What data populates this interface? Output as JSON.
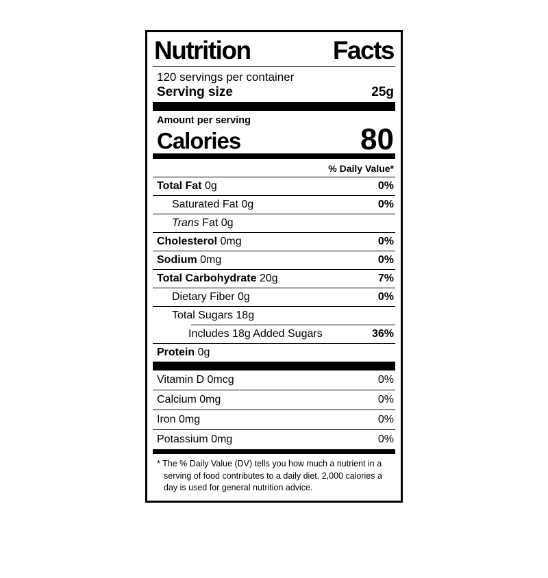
{
  "label": {
    "colors": {
      "foreground": "#000000",
      "background": "#ffffff"
    },
    "title_word1": "Nutrition",
    "title_word2": "Facts",
    "servings_per_container": "120 servings per container",
    "serving_size": {
      "label": "Serving size",
      "value": "25g"
    },
    "amount_per_serving": "Amount per serving",
    "calories": {
      "label": "Calories",
      "value": "80"
    },
    "daily_value_header": "% Daily Value*",
    "nutrients": [
      {
        "name": "Total Fat",
        "amount": "0g",
        "dv": "0%"
      },
      {
        "name": "Saturated Fat",
        "amount": "0g",
        "dv": "0%"
      },
      {
        "name_italic": "Trans",
        "name": "Fat",
        "amount": "0g",
        "dv": ""
      },
      {
        "name": "Cholesterol",
        "amount": "0mg",
        "dv": "0%"
      },
      {
        "name": "Sodium",
        "amount": "0mg",
        "dv": "0%"
      },
      {
        "name": "Total Carbohydrate",
        "amount": "20g",
        "dv": "7%"
      },
      {
        "name": "Dietary Fiber",
        "amount": "0g",
        "dv": "0%"
      },
      {
        "name": "Total Sugars",
        "amount": "18g",
        "dv": ""
      },
      {
        "name": "Includes 18g Added Sugars",
        "amount": "",
        "dv": "36%"
      },
      {
        "name": "Protein",
        "amount": "0g",
        "dv": ""
      }
    ],
    "vitamins": [
      {
        "name": "Vitamin D",
        "amount": "0mcg",
        "dv": "0%"
      },
      {
        "name": "Calcium",
        "amount": "0mg",
        "dv": "0%"
      },
      {
        "name": "Iron",
        "amount": "0mg",
        "dv": "0%"
      },
      {
        "name": "Potassium",
        "amount": "0mg",
        "dv": "0%"
      }
    ],
    "footnote_marker": "*",
    "footnote": "The % Daily Value (DV) tells you how much a nutrient in a serving of food contributes to a daily diet. 2,000 calories a day is used for general nutrition advice."
  }
}
